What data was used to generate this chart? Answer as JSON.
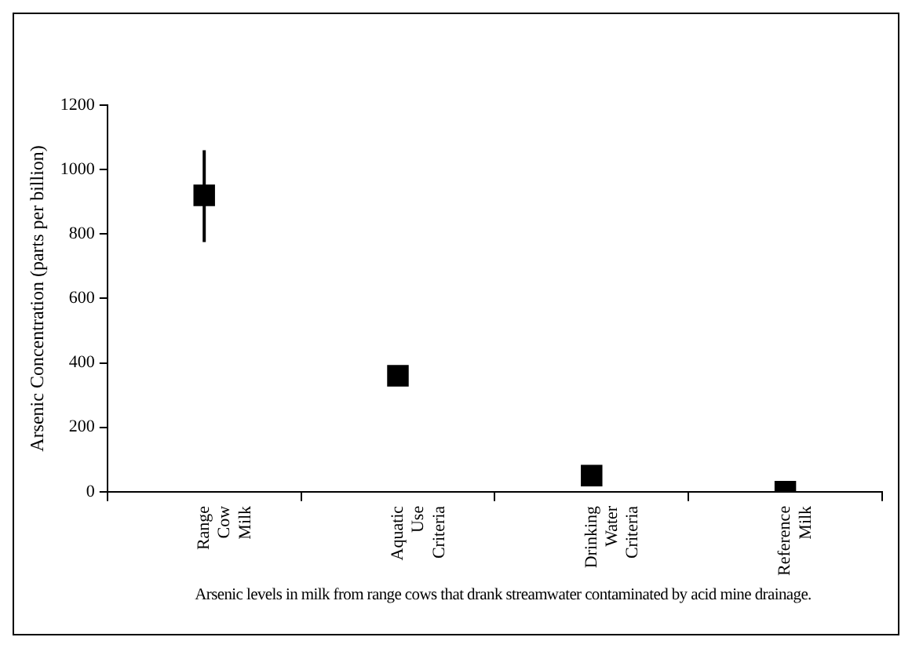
{
  "chart_data": {
    "type": "scatter",
    "ylabel": "Arsenic Concentration (parts per billion)",
    "categories": [
      "Range Cow Milk",
      "Aquatic Use Criteria",
      "Drinking Water Criteria",
      "Reference Milk"
    ],
    "values": [
      920,
      360,
      50,
      0
    ],
    "errors": [
      [
        775,
        1060
      ],
      null,
      null,
      null
    ],
    "color": "#000000",
    "marker": "square",
    "ylim": [
      0,
      1200
    ],
    "yticks": [
      0,
      200,
      400,
      600,
      800,
      1000,
      1200
    ],
    "grid": false,
    "legend": false,
    "annotations": [
      "Arsenic levels in milk from range cows that drank streamwater contaminated by acid mine drainage."
    ]
  }
}
